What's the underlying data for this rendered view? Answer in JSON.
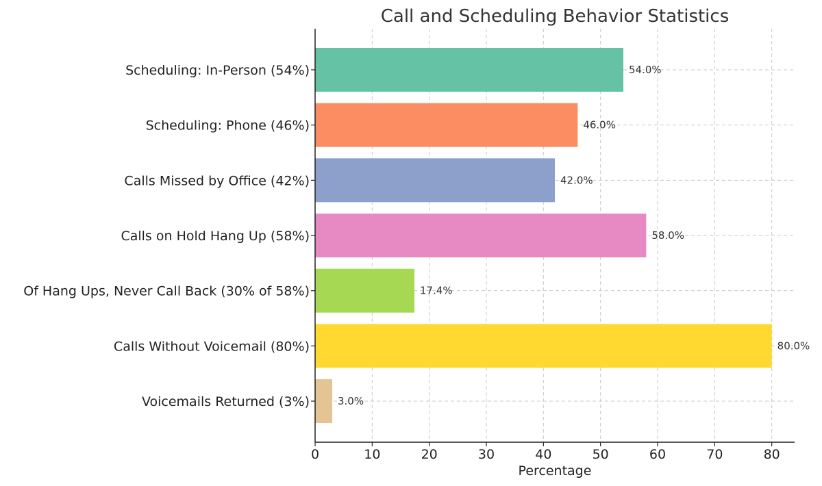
{
  "chart_data": {
    "type": "bar",
    "orientation": "horizontal",
    "title": "Call and Scheduling Behavior Statistics",
    "xlabel": "Percentage",
    "ylabel": "",
    "xlim": [
      0,
      84
    ],
    "xticks": [
      0,
      10,
      20,
      30,
      40,
      50,
      60,
      70,
      80
    ],
    "grid": true,
    "categories": [
      "Scheduling: In-Person (54%)",
      "Scheduling: Phone (46%)",
      "Calls Missed by Office (42%)",
      "Calls on Hold Hang Up (58%)",
      "Of Hang Ups, Never Call Back (30% of 58%)",
      "Calls Without Voicemail (80%)",
      "Voicemails Returned (3%)"
    ],
    "values": [
      54.0,
      46.0,
      42.0,
      58.0,
      17.4,
      80.0,
      3.0
    ],
    "value_labels": [
      "54.0%",
      "46.0%",
      "42.0%",
      "58.0%",
      "17.4%",
      "80.0%",
      "3.0%"
    ],
    "colors": [
      "#66c2a5",
      "#fc8d62",
      "#8da0cb",
      "#e78ac3",
      "#a6d854",
      "#ffd92f",
      "#e5c494"
    ]
  }
}
